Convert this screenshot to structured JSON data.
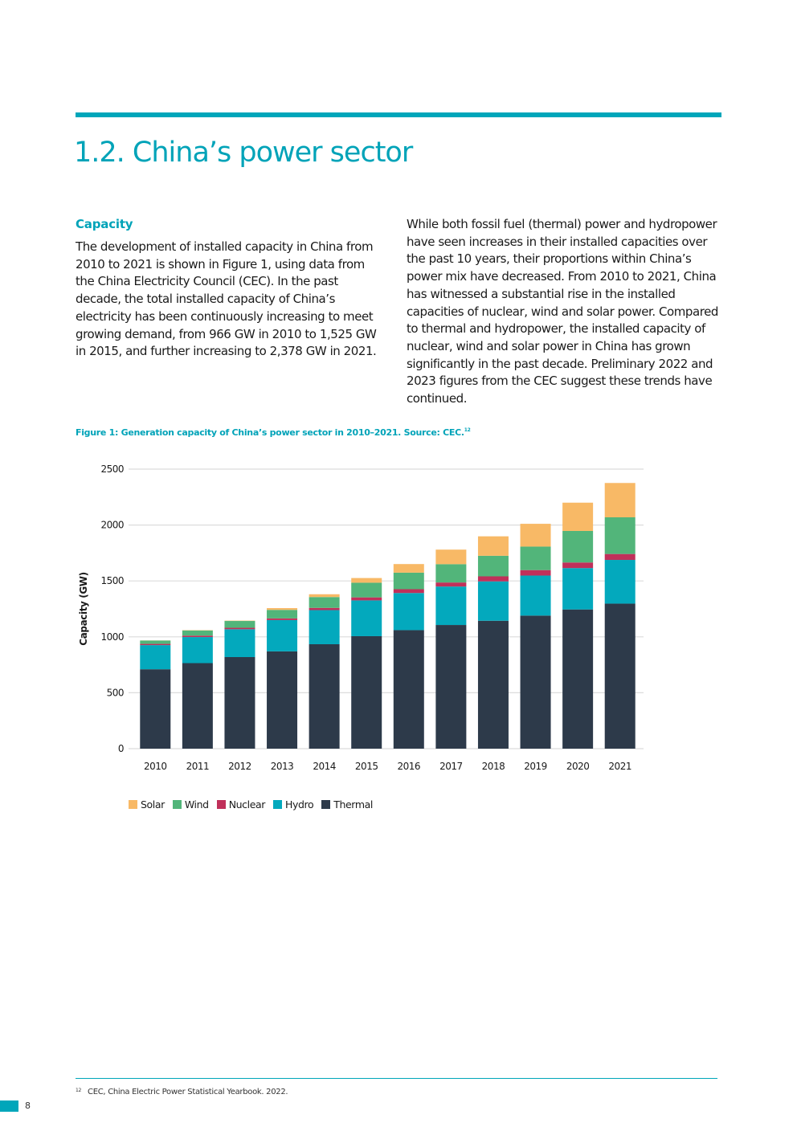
{
  "header": {
    "title": "1.2. China’s power sector"
  },
  "left_column": {
    "heading": "Capacity",
    "paragraph": "The development of installed capacity in China from 2010 to 2021 is shown in Figure 1, using data from the China Electricity Council (CEC). In the past decade, the total installed capacity of China’s electricity has been continuously increasing to meet growing demand, from 966 GW in 2010 to 1,525 GW in 2015, and further increasing to 2,378 GW in 2021."
  },
  "right_column": {
    "paragraph": "While both fossil fuel (thermal) power and hydropower have seen increases in their installed capacities over the past 10 years, their proportions within China’s power mix have decreased. From 2010 to 2021, China has witnessed a substantial rise in the installed capacities of nuclear, wind and solar power. Compared to thermal and hydropower, the installed capacity of nuclear, wind and solar power in China has grown significantly in the past decade. Preliminary 2022 and 2023 figures from the CEC suggest these trends have continued."
  },
  "figure": {
    "caption": "Figure 1: Generation capacity of China’s power sector in 2010–2021. Source: CEC.",
    "caption_ref": "12"
  },
  "chart_data": {
    "type": "bar",
    "stacked": true,
    "title": "",
    "xlabel": "",
    "ylabel": "Capacity (GW)",
    "ylim": [
      0,
      2500
    ],
    "yticks": [
      0,
      500,
      1000,
      1500,
      2000,
      2500
    ],
    "grid": true,
    "legend_position": "bottom-left",
    "categories": [
      "2010",
      "2011",
      "2012",
      "2013",
      "2014",
      "2015",
      "2016",
      "2017",
      "2018",
      "2019",
      "2020",
      "2021"
    ],
    "series": [
      {
        "name": "Thermal",
        "color": "#2d3a4a",
        "values": [
          710,
          765,
          819,
          870,
          934,
          1006,
          1060,
          1106,
          1144,
          1190,
          1245,
          1297
        ]
      },
      {
        "name": "Hydro",
        "color": "#03a9bd",
        "values": [
          216,
          233,
          249,
          280,
          305,
          320,
          332,
          344,
          352,
          358,
          370,
          391
        ]
      },
      {
        "name": "Nuclear",
        "color": "#c0305a",
        "values": [
          11,
          13,
          13,
          15,
          20,
          27,
          34,
          36,
          45,
          49,
          50,
          53
        ]
      },
      {
        "name": "Wind",
        "color": "#52b57a",
        "values": [
          30,
          46,
          61,
          76,
          97,
          131,
          148,
          164,
          184,
          210,
          282,
          328
        ]
      },
      {
        "name": "Solar",
        "color": "#f8b966",
        "values": [
          1,
          3,
          3,
          16,
          25,
          42,
          77,
          130,
          174,
          204,
          253,
          307
        ]
      }
    ],
    "legend_order": [
      "Solar",
      "Wind",
      "Nuclear",
      "Hydro",
      "Thermal"
    ]
  },
  "footnote": {
    "number": "12",
    "text": "CEC, China Electric Power Statistical Yearbook. 2022."
  },
  "page": {
    "number": "8"
  },
  "colors": {
    "accent": "#00a3b8"
  }
}
